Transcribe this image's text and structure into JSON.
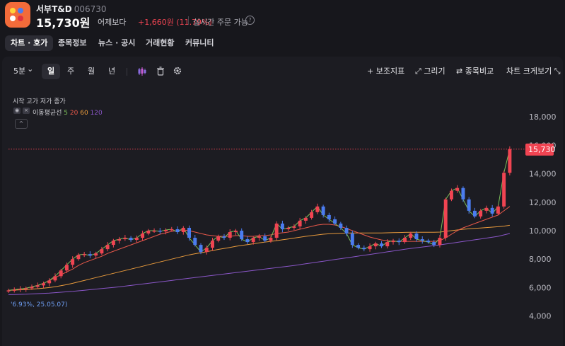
{
  "header": {
    "stock_name": "서부T&D",
    "stock_code": "006730",
    "price": "15,730원",
    "change_label": "어제보다",
    "change_value": "+1,660원 (11.79%)",
    "realtime": "실시간 주문 가능",
    "help_glyph": "?"
  },
  "tabs": [
    "차트 · 호가",
    "종목정보",
    "뉴스 · 공시",
    "거래현황",
    "커뮤니티"
  ],
  "toolbar": {
    "interval": "5분",
    "chevron": "⌄",
    "periods": [
      "일",
      "주",
      "월",
      "년"
    ],
    "indicator": "보조지표",
    "draw": "그리기",
    "compare": "종목비교",
    "enlarge": "차트 크게보기",
    "plus_glyph": "+",
    "pen_glyph": "⤢",
    "swap_glyph": "⇄",
    "corner_glyph": "⤡"
  },
  "overlay": {
    "ohlc_legend": "시작 고가 저가 종가",
    "ma_label": "이동평균선",
    "ma_periods": [
      "5",
      "20",
      "60",
      "120"
    ],
    "eye_glyph": "◉",
    "x_glyph": "×",
    "caret_glyph": "^",
    "low_marker": "'6.93%, 25.05.07)"
  },
  "colors": {
    "up": "#f04452",
    "down": "#4b7cf0",
    "ma5": "#7bbf5a",
    "ma20": "#e8584a",
    "ma60": "#e89a3c",
    "ma120": "#8a56c8",
    "accent": "#f26b3a"
  },
  "chart_data": {
    "type": "candlestick",
    "y_axis": [
      "18,000",
      "16,000",
      "14,000",
      "12,000",
      "10,000",
      "8,000",
      "6,000",
      "4,000"
    ],
    "y_values": [
      18000,
      16000,
      14000,
      12000,
      10000,
      8000,
      6000,
      4000
    ],
    "ylim": [
      3000,
      19000
    ],
    "current_price": 15730,
    "current_price_label": "15,730",
    "closes": [
      5800,
      5850,
      5900,
      5950,
      6050,
      6150,
      6300,
      6500,
      6800,
      7200,
      7600,
      8000,
      8300,
      8350,
      8250,
      8400,
      8700,
      9000,
      9300,
      9400,
      9500,
      9350,
      9500,
      9800,
      10000,
      10000,
      9950,
      10050,
      10100,
      9900,
      10200,
      9500,
      9000,
      8500,
      8800,
      9300,
      9600,
      9500,
      9900,
      10000,
      9400,
      9200,
      9500,
      9600,
      9300,
      9500,
      10500,
      10100,
      10200,
      10300,
      10700,
      10900,
      11300,
      11700,
      11100,
      10800,
      10500,
      10200,
      9800,
      9000,
      8800,
      8700,
      8900,
      9100,
      8900,
      9200,
      9300,
      9200,
      9500,
      9800,
      9400,
      9300,
      9200,
      9000,
      9500,
      12200,
      12800,
      13000,
      12200,
      11400,
      11000,
      11400,
      11600,
      11200,
      11700,
      14070,
      15730
    ],
    "ma5": [
      5800,
      5850,
      5900,
      5950,
      6050,
      6150,
      6300,
      6500,
      6800,
      7200,
      7600,
      8000,
      8300,
      8350,
      8250,
      8400,
      8700,
      9000,
      9300,
      9400,
      9500,
      9350,
      9500,
      9800,
      10000,
      10000,
      9950,
      10050,
      10100,
      9900,
      10200,
      9500,
      9000,
      8500,
      8800,
      9300,
      9600,
      9500,
      9900,
      10000,
      9400,
      9200,
      9500,
      9600,
      9300,
      9500,
      10500,
      10100,
      10200,
      10300,
      10700,
      10900,
      11300,
      11700,
      11100,
      10800,
      10500,
      10200,
      9800,
      9000,
      8800,
      8700,
      8900,
      9100,
      8900,
      9200,
      9300,
      9200,
      9500,
      9800,
      9400,
      9300,
      9200,
      9000,
      9500,
      12200,
      12800,
      13000,
      12200,
      11400,
      11000,
      11400,
      11600,
      11200,
      11700,
      14070,
      15730
    ],
    "ma20": [
      5800,
      5850,
      5900,
      5950,
      6050,
      6150,
      6300,
      6500,
      6700,
      6900,
      7100,
      7300,
      7550,
      7750,
      7900,
      8050,
      8200,
      8400,
      8550,
      8700,
      8850,
      9000,
      9150,
      9300,
      9450,
      9600,
      9750,
      9850,
      9950,
      10000,
      10050,
      10000,
      9900,
      9800,
      9700,
      9650,
      9600,
      9600,
      9600,
      9650,
      9650,
      9600,
      9600,
      9650,
      9650,
      9700,
      9800,
      9850,
      9900,
      10000,
      10100,
      10200,
      10300,
      10400,
      10450,
      10450,
      10400,
      10300,
      10150,
      10000,
      9850,
      9700,
      9550,
      9450,
      9350,
      9300,
      9250,
      9250,
      9250,
      9250,
      9250,
      9250,
      9250,
      9250,
      9300,
      9500,
      9750,
      10000,
      10200,
      10350,
      10500,
      10650,
      10800,
      10950,
      11100,
      11400,
      11700
    ],
    "ma60": [
      5800,
      5820,
      5840,
      5860,
      5890,
      5920,
      5960,
      6000,
      6060,
      6130,
      6210,
      6300,
      6400,
      6500,
      6600,
      6700,
      6800,
      6900,
      7000,
      7100,
      7200,
      7300,
      7400,
      7500,
      7600,
      7700,
      7800,
      7900,
      8000,
      8100,
      8200,
      8300,
      8380,
      8450,
      8520,
      8600,
      8680,
      8750,
      8820,
      8900,
      8960,
      9020,
      9080,
      9140,
      9200,
      9250,
      9300,
      9360,
      9420,
      9480,
      9540,
      9600,
      9650,
      9700,
      9750,
      9780,
      9800,
      9820,
      9830,
      9840,
      9840,
      9840,
      9840,
      9840,
      9840,
      9850,
      9860,
      9870,
      9880,
      9890,
      9890,
      9890,
      9890,
      9890,
      9900,
      9950,
      10000,
      10050,
      10100,
      10130,
      10160,
      10190,
      10220,
      10250,
      10280,
      10320,
      10380
    ],
    "ma120": [
      5500,
      5510,
      5520,
      5530,
      5550,
      5570,
      5590,
      5610,
      5640,
      5670,
      5700,
      5730,
      5770,
      5810,
      5850,
      5890,
      5930,
      5970,
      6010,
      6050,
      6100,
      6150,
      6200,
      6250,
      6300,
      6350,
      6400,
      6450,
      6500,
      6550,
      6600,
      6650,
      6700,
      6750,
      6800,
      6850,
      6900,
      6950,
      7000,
      7050,
      7100,
      7150,
      7200,
      7250,
      7300,
      7350,
      7400,
      7450,
      7500,
      7550,
      7610,
      7670,
      7730,
      7790,
      7850,
      7910,
      7970,
      8030,
      8090,
      8150,
      8210,
      8270,
      8330,
      8390,
      8450,
      8510,
      8570,
      8630,
      8690,
      8750,
      8800,
      8850,
      8900,
      8950,
      9000,
      9060,
      9120,
      9180,
      9240,
      9300,
      9360,
      9420,
      9480,
      9540,
      9600,
      9700,
      9800
    ]
  }
}
